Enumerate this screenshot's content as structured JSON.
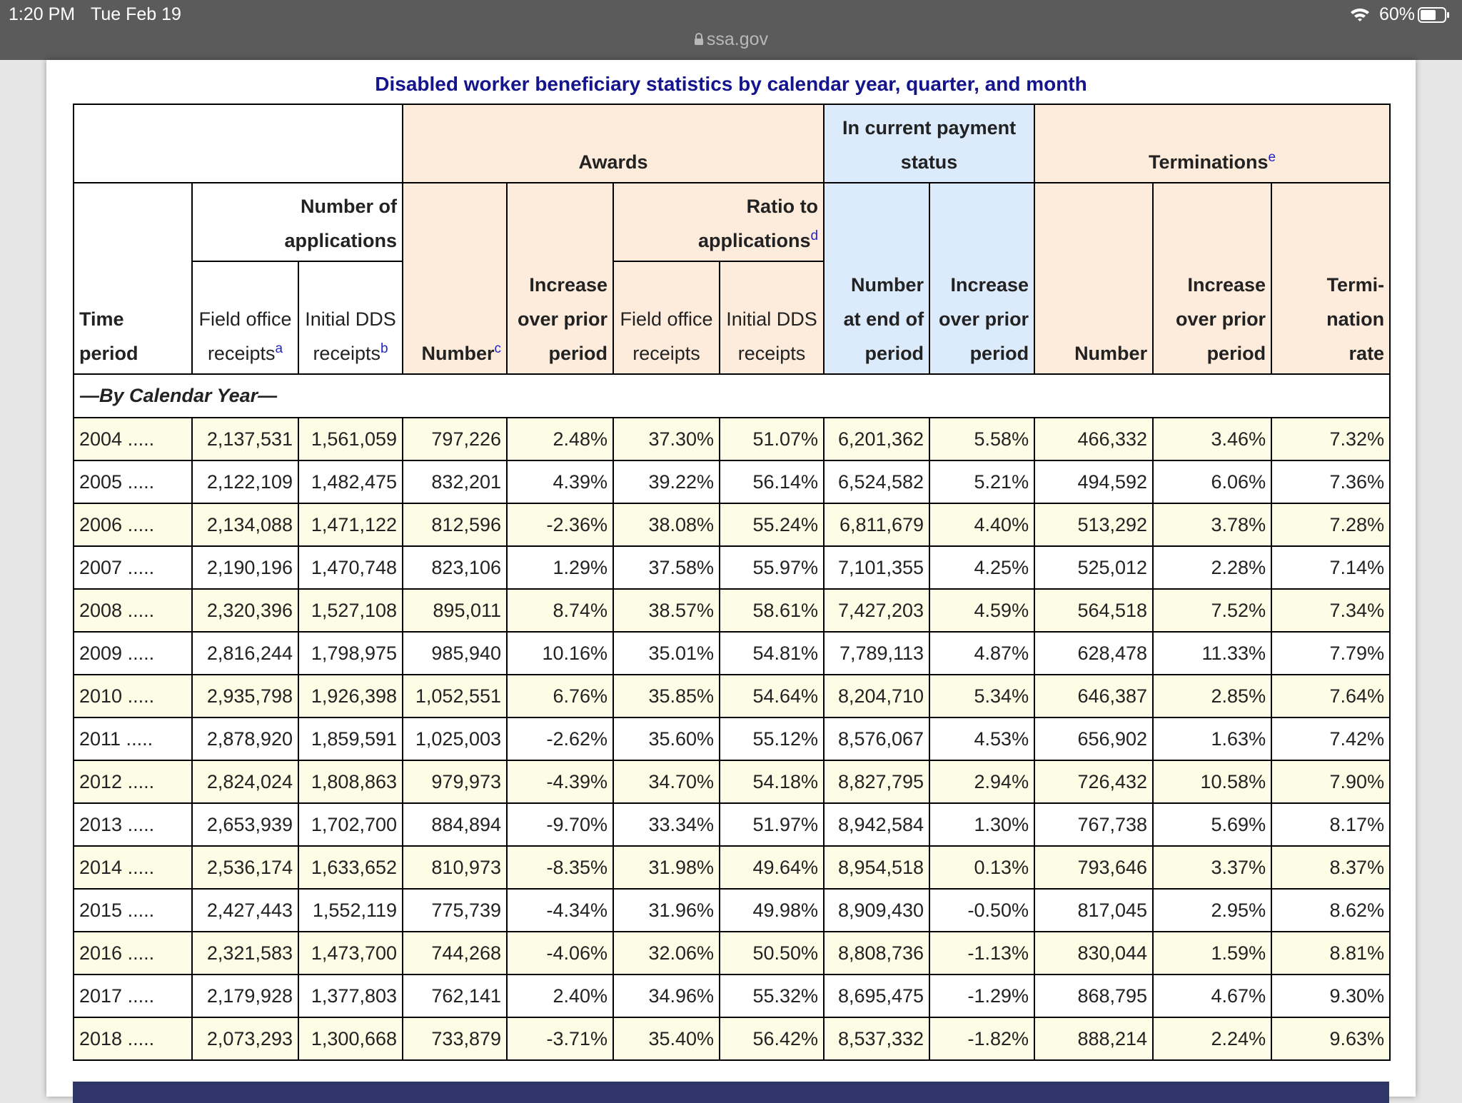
{
  "status": {
    "time": "1:20 PM",
    "date": "Tue Feb 19",
    "battery": "60%",
    "url": "ssa.gov"
  },
  "title": "Disabled worker beneficiary statistics by calendar year, quarter, and month",
  "header": {
    "awards": "Awards",
    "current_status": "In current payment status",
    "terminations": {
      "text": "Terminations",
      "note": "e"
    },
    "time_period": "Time period",
    "applications": "Number of applications",
    "awards_number": {
      "text": "Number",
      "note": "c"
    },
    "awards_increase": "Increase over prior period",
    "ratio": {
      "text": "Ratio to applications",
      "note": "d"
    },
    "status_number": "Number at end of period",
    "status_increase": "Increase over prior period",
    "term_number": "Number",
    "term_increase": "Increase over prior period",
    "term_rate": "Termi-nation rate",
    "app_field": {
      "text": "Field office receipts",
      "note": "a"
    },
    "app_dds": {
      "text": "Initial DDS receipts",
      "note": "b"
    },
    "ratio_field": "Field office receipts",
    "ratio_dds": "Initial DDS receipts"
  },
  "table": {
    "section": "—By Calendar Year—",
    "rows": [
      [
        "2004 .....",
        "2,137,531",
        "1,561,059",
        "797,226",
        "2.48%",
        "37.30%",
        "51.07%",
        "6,201,362",
        "5.58%",
        "466,332",
        "3.46%",
        "7.32%"
      ],
      [
        "2005 .....",
        "2,122,109",
        "1,482,475",
        "832,201",
        "4.39%",
        "39.22%",
        "56.14%",
        "6,524,582",
        "5.21%",
        "494,592",
        "6.06%",
        "7.36%"
      ],
      [
        "2006 .....",
        "2,134,088",
        "1,471,122",
        "812,596",
        "-2.36%",
        "38.08%",
        "55.24%",
        "6,811,679",
        "4.40%",
        "513,292",
        "3.78%",
        "7.28%"
      ],
      [
        "2007 .....",
        "2,190,196",
        "1,470,748",
        "823,106",
        "1.29%",
        "37.58%",
        "55.97%",
        "7,101,355",
        "4.25%",
        "525,012",
        "2.28%",
        "7.14%"
      ],
      [
        "2008 .....",
        "2,320,396",
        "1,527,108",
        "895,011",
        "8.74%",
        "38.57%",
        "58.61%",
        "7,427,203",
        "4.59%",
        "564,518",
        "7.52%",
        "7.34%"
      ],
      [
        "2009 .....",
        "2,816,244",
        "1,798,975",
        "985,940",
        "10.16%",
        "35.01%",
        "54.81%",
        "7,789,113",
        "4.87%",
        "628,478",
        "11.33%",
        "7.79%"
      ],
      [
        "2010 .....",
        "2,935,798",
        "1,926,398",
        "1,052,551",
        "6.76%",
        "35.85%",
        "54.64%",
        "8,204,710",
        "5.34%",
        "646,387",
        "2.85%",
        "7.64%"
      ],
      [
        "2011 .....",
        "2,878,920",
        "1,859,591",
        "1,025,003",
        "-2.62%",
        "35.60%",
        "55.12%",
        "8,576,067",
        "4.53%",
        "656,902",
        "1.63%",
        "7.42%"
      ],
      [
        "2012 .....",
        "2,824,024",
        "1,808,863",
        "979,973",
        "-4.39%",
        "34.70%",
        "54.18%",
        "8,827,795",
        "2.94%",
        "726,432",
        "10.58%",
        "7.90%"
      ],
      [
        "2013 .....",
        "2,653,939",
        "1,702,700",
        "884,894",
        "-9.70%",
        "33.34%",
        "51.97%",
        "8,942,584",
        "1.30%",
        "767,738",
        "5.69%",
        "8.17%"
      ],
      [
        "2014 .....",
        "2,536,174",
        "1,633,652",
        "810,973",
        "-8.35%",
        "31.98%",
        "49.64%",
        "8,954,518",
        "0.13%",
        "793,646",
        "3.37%",
        "8.37%"
      ],
      [
        "2015 .....",
        "2,427,443",
        "1,552,119",
        "775,739",
        "-4.34%",
        "31.96%",
        "49.98%",
        "8,909,430",
        "-0.50%",
        "817,045",
        "2.95%",
        "8.62%"
      ],
      [
        "2016 .....",
        "2,321,583",
        "1,473,700",
        "744,268",
        "-4.06%",
        "32.06%",
        "50.50%",
        "8,808,736",
        "-1.13%",
        "830,044",
        "1.59%",
        "8.81%"
      ],
      [
        "2017 .....",
        "2,179,928",
        "1,377,803",
        "762,141",
        "2.40%",
        "34.96%",
        "55.32%",
        "8,695,475",
        "-1.29%",
        "868,795",
        "4.67%",
        "9.30%"
      ],
      [
        "2018 .....",
        "2,073,293",
        "1,300,668",
        "733,879",
        "-3.71%",
        "35.40%",
        "56.42%",
        "8,537,332",
        "-1.82%",
        "888,214",
        "2.24%",
        "9.63%"
      ]
    ]
  }
}
